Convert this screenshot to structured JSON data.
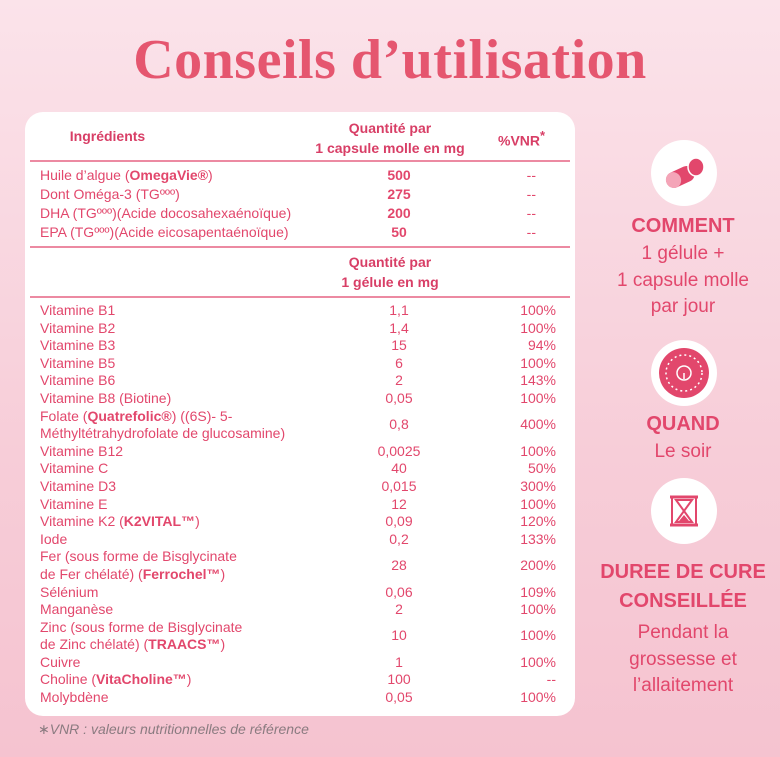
{
  "title": "Conseils d’utilisation",
  "table_1": {
    "header": {
      "ingredient": "Ingrédients",
      "quantity": [
        "Quantité par",
        "1 capsule molle en mg"
      ],
      "vnr": "%VNR",
      "vnr_mark": "*"
    },
    "rows": [
      {
        "name": [
          "Huile d’algue (",
          "OmegaVie®",
          ")"
        ],
        "quantity": "500",
        "vnr": "--"
      },
      {
        "name": [
          "Dont Oméga-3 (TGººº)"
        ],
        "quantity": "275",
        "vnr": "--"
      },
      {
        "name": [
          "DHA (TGººº)(Acide docosahexaénoïque)"
        ],
        "quantity": "200",
        "vnr": "--"
      },
      {
        "name": [
          "EPA (TGººº)(Acide eicosapentaénoïque)"
        ],
        "quantity": "50",
        "vnr": "--"
      }
    ]
  },
  "table_2": {
    "header": {
      "quantity": [
        "Quantité par",
        "1 gélule en mg"
      ]
    },
    "rows": [
      {
        "name": [
          "Vitamine B1"
        ],
        "quantity": "1,1",
        "vnr": "100%"
      },
      {
        "name": [
          "Vitamine B2"
        ],
        "quantity": "1,4",
        "vnr": "100%"
      },
      {
        "name": [
          "Vitamine B3"
        ],
        "quantity": "15",
        "vnr": "94%"
      },
      {
        "name": [
          "Vitamine B5"
        ],
        "quantity": "6",
        "vnr": "100%"
      },
      {
        "name": [
          "Vitamine B6"
        ],
        "quantity": "2",
        "vnr": "143%"
      },
      {
        "name": [
          "Vitamine B8 (Biotine)"
        ],
        "quantity": "0,05",
        "vnr": "100%"
      },
      {
        "name": [
          "Folate (",
          "Quatrefolic®",
          ") ((6S)- 5-\nMéthyltétrahydrofolate de glucosamine)"
        ],
        "quantity": "0,8",
        "vnr": "400%"
      },
      {
        "name": [
          "Vitamine B12"
        ],
        "quantity": "0,0025",
        "vnr": "100%"
      },
      {
        "name": [
          "Vitamine C"
        ],
        "quantity": "40",
        "vnr": "50%"
      },
      {
        "name": [
          "Vitamine D3"
        ],
        "quantity": "0,015",
        "vnr": "300%"
      },
      {
        "name": [
          "Vitamine E"
        ],
        "quantity": "12",
        "vnr": "100%"
      },
      {
        "name": [
          "Vitamine K2 (",
          "K2VITAL™",
          ")"
        ],
        "quantity": "0,09",
        "vnr": "120%"
      },
      {
        "name": [
          "Iode"
        ],
        "quantity": "0,2",
        "vnr": "133%"
      },
      {
        "name": [
          "Fer (sous forme de Bisglycinate\nde Fer chélaté) (",
          "Ferrochel™",
          ")"
        ],
        "quantity": "28",
        "vnr": "200%"
      },
      {
        "name": [
          "Sélénium"
        ],
        "quantity": "0,06",
        "vnr": "109%"
      },
      {
        "name": [
          "Manganèse"
        ],
        "quantity": "2",
        "vnr": "100%"
      },
      {
        "name": [
          "Zinc (sous forme de Bisglycinate\nde Zinc chélaté) (",
          "TRAACS™",
          ")"
        ],
        "quantity": "10",
        "vnr": "100%"
      },
      {
        "name": [
          "Cuivre"
        ],
        "quantity": "1",
        "vnr": "100%"
      },
      {
        "name": [
          "Choline (",
          "VitaCholine™",
          ")"
        ],
        "quantity": "100",
        "vnr": "--"
      },
      {
        "name": [
          "Molybdène"
        ],
        "quantity": "0,05",
        "vnr": "100%"
      }
    ]
  },
  "footnote": "∗VNR : valeurs nutritionnelles de référence",
  "sections": [
    {
      "heading": [
        "COMMENT"
      ],
      "text": [
        "1 gélule +",
        "1 capsule molle",
        "par jour"
      ]
    },
    {
      "heading": [
        "QUAND"
      ],
      "text": [
        "Le soir"
      ]
    },
    {
      "heading": [
        "DUREE DE CURE",
        "CONSEILLÉE"
      ],
      "text": [
        "Pendant la",
        "grossesse et",
        "l’allaitement"
      ]
    }
  ]
}
